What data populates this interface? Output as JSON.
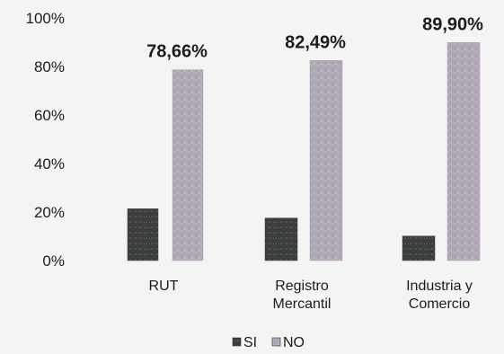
{
  "chart_data": {
    "type": "bar",
    "categories": [
      [
        "RUT"
      ],
      [
        "Registro",
        "Mercantil"
      ],
      [
        "Industria y",
        "Comercio"
      ]
    ],
    "series": [
      {
        "name": "SI",
        "values": [
          21.34,
          17.51,
          10.1
        ],
        "color": "#3a3d3b"
      },
      {
        "name": "NO",
        "values": [
          78.66,
          82.49,
          89.9
        ],
        "color": "#a9a3b4",
        "data_labels": [
          "78,66%",
          "82,49%",
          "89,90%"
        ]
      }
    ],
    "ylim": [
      0,
      100
    ],
    "yticks": [
      {
        "value": 0,
        "label": "0%"
      },
      {
        "value": 20,
        "label": "20%"
      },
      {
        "value": 40,
        "label": "40%"
      },
      {
        "value": 60,
        "label": "60%"
      },
      {
        "value": 80,
        "label": "80%"
      },
      {
        "value": 100,
        "label": "100%"
      }
    ],
    "grid": false,
    "legend_position": "bottom-center"
  }
}
